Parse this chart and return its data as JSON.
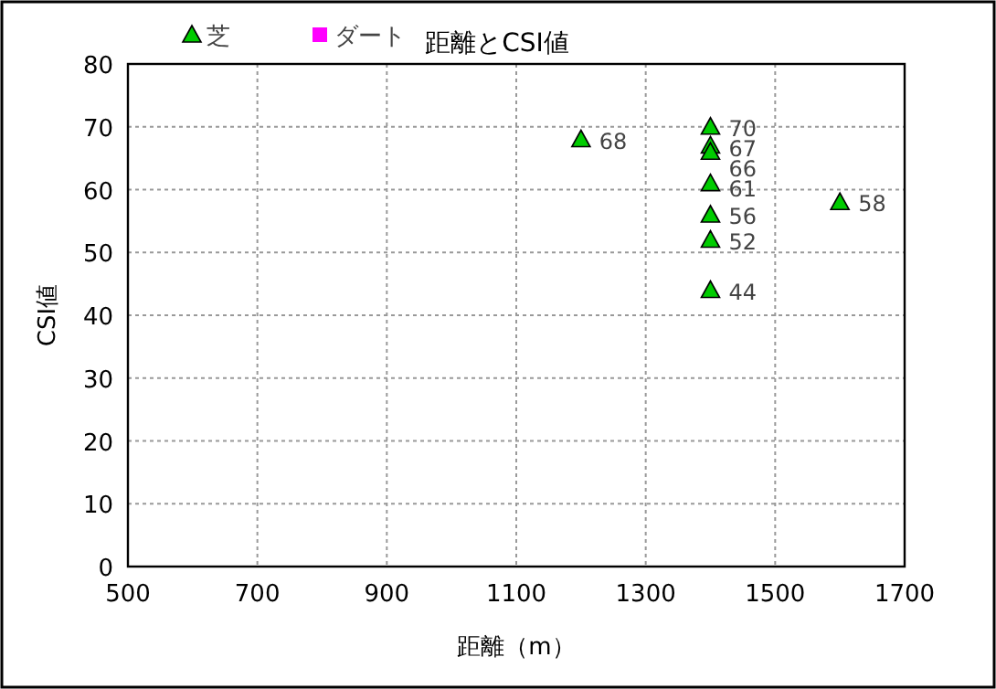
{
  "chart_data": {
    "type": "scatter",
    "title": "距離とCSI値",
    "xlabel": "距離（m）",
    "ylabel": "CSI値",
    "xlim": [
      500,
      1700
    ],
    "xticks": [
      500,
      700,
      900,
      1100,
      1300,
      1500,
      1700
    ],
    "ylim": [
      0,
      80
    ],
    "yticks": [
      0,
      10,
      20,
      30,
      40,
      50,
      60,
      70,
      80
    ],
    "grid": true,
    "legend": "top left",
    "data_labels": true,
    "series": [
      {
        "name": "芝",
        "color": "#00cc00",
        "marker": "triangle",
        "x": [
          1200,
          1400,
          1400,
          1400,
          1400,
          1400,
          1400,
          1400,
          1600
        ],
        "values": [
          68,
          70,
          67,
          66,
          61,
          56,
          52,
          44,
          58
        ]
      },
      {
        "name": "ダート",
        "color": "#ff00ff",
        "marker": "square"
      }
    ]
  }
}
